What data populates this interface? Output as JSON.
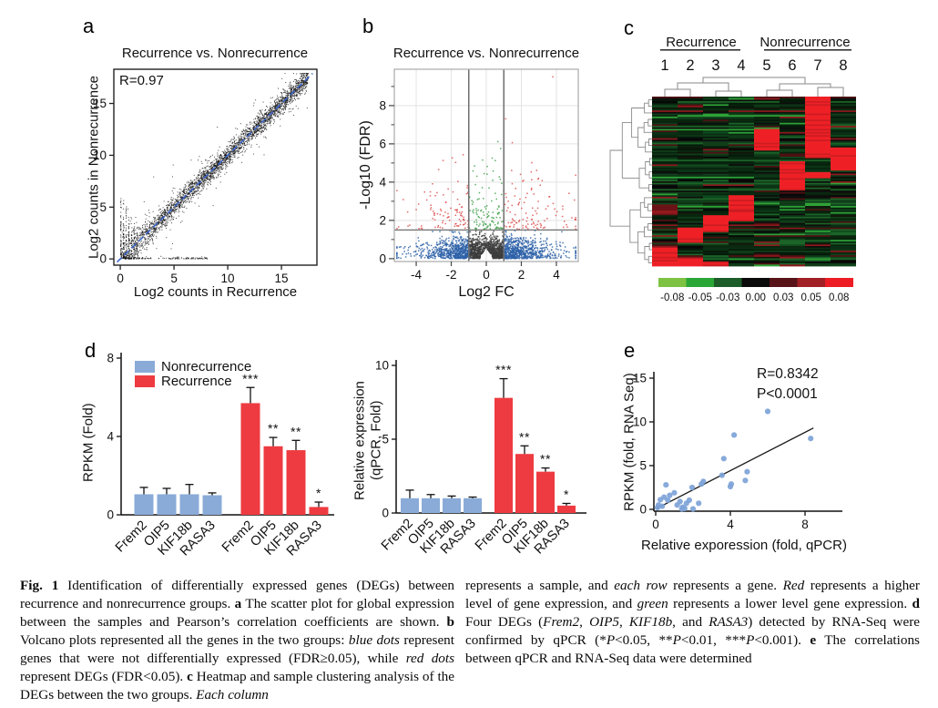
{
  "chart_data": {
    "a": {
      "type": "scatter",
      "label": "a",
      "title": "Recurrence vs. Nonrecurrence",
      "annotation": "R=0.97",
      "xlabel": "Log2 counts in Recurrence",
      "ylabel": "Log2 counts in Nonrecurrence",
      "xticks": [
        0,
        5,
        10,
        15
      ],
      "yticks": [
        0,
        5,
        10,
        15
      ],
      "xlim": [
        -0.6,
        18.3
      ],
      "ylim": [
        -0.6,
        18.3
      ],
      "point_color": "#141414",
      "identity_line": {
        "color": "#3b63c8",
        "style": "dashed"
      },
      "cloud": {
        "n": 3200,
        "seed": 11,
        "noise_sd": 0.5,
        "xmax": 17.5
      }
    },
    "b": {
      "type": "scatter",
      "label": "b",
      "title": "Recurrence vs. Nonrecurrence",
      "xlabel": "Log2 FC",
      "ylabel": "-Log10 (FDR)",
      "xticks": [
        -4,
        -2,
        0,
        2,
        4
      ],
      "yticks": [
        0,
        2,
        4,
        6,
        8
      ],
      "minor_yticks": [
        1,
        3,
        5,
        7,
        9
      ],
      "xlim": [
        -5.25,
        5.25
      ],
      "ylim": [
        -0.15,
        9.9
      ],
      "thresholds": {
        "x": [
          -1,
          1
        ],
        "y": 1.5
      },
      "n_bulk": 2500,
      "n_tail": 330,
      "seed": 23,
      "colors": {
        "blue": "#2e62a8",
        "gray": "#3d3d3d",
        "red": "#dd4e4e",
        "green": "#3fa04a"
      }
    },
    "c": {
      "type": "heatmap",
      "label": "c",
      "groups": [
        {
          "label": "Recurrence",
          "columns": [
            "1",
            "2",
            "3",
            "4"
          ]
        },
        {
          "label": "Nonrecurrence",
          "columns": [
            "5",
            "6",
            "7",
            "8"
          ]
        }
      ],
      "rows": 110,
      "seed": 5,
      "red_blocks": [
        {
          "col": 7,
          "from": 0.0,
          "to": 0.36
        },
        {
          "col": 5,
          "from": 0.185,
          "to": 0.31
        },
        {
          "col": 8,
          "from": 0.295,
          "to": 0.435
        },
        {
          "col": 6,
          "from": 0.375,
          "to": 0.55
        },
        {
          "col": 4,
          "from": 0.575,
          "to": 0.73
        },
        {
          "col": 3,
          "from": 0.7,
          "to": 0.8
        },
        {
          "col": 2,
          "from": 0.765,
          "to": 0.862
        },
        {
          "col": 1,
          "from": 0.885,
          "to": 1.0
        },
        {
          "col": 1,
          "from": 0.632,
          "to": 0.7,
          "shade": "dark"
        },
        {
          "col": 2,
          "from": 0.952,
          "to": 1.0
        },
        {
          "col": 3,
          "from": 0.972,
          "to": 1.0
        },
        {
          "col": 7,
          "from": 0.44,
          "to": 0.475
        }
      ],
      "palette": {
        "dark_greens": [
          "#07230d",
          "#0a2f13",
          "#0d3817",
          "#113f1a",
          "#0a2910",
          "#05190a",
          "#0f4a1e"
        ],
        "blacks": [
          "#060606",
          "#0d0d0d",
          "#111408"
        ],
        "mid_green": "#1c6428",
        "bright_green": "#2fa238",
        "dark_red": "#4f1013",
        "mid_red": "#8c181c",
        "block_red": "#ee2026",
        "block_red_alt": "#cb1d21"
      },
      "colorbar": {
        "segments": [
          "#7dc242",
          "#2aa637",
          "#1c5c28",
          "#0a0a0a",
          "#571318",
          "#a02025",
          "#ed1c24"
        ],
        "labels": [
          "-0.08",
          "-0.05",
          "-0.03",
          "0.00",
          "0.03",
          "0.05",
          "0.08"
        ]
      }
    },
    "d_left": {
      "type": "bar",
      "label": "d",
      "ylabel": "RPKM (Fold)",
      "yticks": [
        0,
        4,
        8
      ],
      "ylim": [
        0,
        8
      ],
      "categories": [
        "Frem2",
        "OIP5",
        "KIF18b",
        "RASA3"
      ],
      "legend": [
        {
          "label": "Nonrecurrence",
          "color": "#8aabd8"
        },
        {
          "label": "Recurrence",
          "color": "#ee3b41"
        }
      ],
      "series": [
        {
          "name": "Nonrecurrence",
          "color": "#8aabd8",
          "values": [
            1.05,
            1.05,
            1.05,
            1.0
          ],
          "errors": [
            0.35,
            0.3,
            0.5,
            0.12
          ]
        },
        {
          "name": "Recurrence",
          "color": "#ee3b41",
          "values": [
            5.7,
            3.5,
            3.3,
            0.4
          ],
          "errors": [
            0.8,
            0.45,
            0.5,
            0.25
          ],
          "significance": [
            "***",
            "**",
            "**",
            "*"
          ]
        }
      ]
    },
    "d_right": {
      "type": "bar",
      "ylabel_lines": [
        "Relative expression",
        "(qPCR, Fold)"
      ],
      "yticks": [
        0,
        5,
        10
      ],
      "ylim": [
        0,
        10
      ],
      "categories": [
        "Frem2",
        "OIP5",
        "KIF18b",
        "RASA3"
      ],
      "series": [
        {
          "name": "Nonrecurrence",
          "color": "#8aabd8",
          "values": [
            1.0,
            1.0,
            1.0,
            1.0
          ],
          "errors": [
            0.55,
            0.25,
            0.15,
            0.08
          ]
        },
        {
          "name": "Recurrence",
          "color": "#ee3b41",
          "values": [
            7.8,
            4.0,
            2.8,
            0.5
          ],
          "errors": [
            1.3,
            0.55,
            0.25,
            0.15
          ],
          "significance": [
            "***",
            "**",
            "**",
            "*"
          ]
        }
      ]
    },
    "e": {
      "type": "scatter",
      "label": "e",
      "annotations": [
        "R=0.8342",
        "P<0.0001"
      ],
      "xlabel": "Relative exporession (fold, qPCR)",
      "ylabel": "RPKM (fold, RNA Seq)",
      "xticks": [
        0,
        4,
        8
      ],
      "yticks": [
        0,
        5,
        10,
        15
      ],
      "xlim": [
        0,
        10
      ],
      "ylim": [
        0,
        16
      ],
      "point_color": "#7da3d8",
      "points": [
        [
          0.1,
          0.2
        ],
        [
          0.15,
          0.5
        ],
        [
          0.25,
          1.1
        ],
        [
          0.35,
          0.35
        ],
        [
          0.45,
          1.4
        ],
        [
          0.55,
          2.8
        ],
        [
          0.65,
          1.05
        ],
        [
          0.75,
          1.6
        ],
        [
          1.0,
          1.9
        ],
        [
          1.15,
          0.5
        ],
        [
          1.3,
          0.9
        ],
        [
          1.4,
          0.05
        ],
        [
          1.45,
          0.25
        ],
        [
          1.55,
          0.1
        ],
        [
          1.65,
          0.7
        ],
        [
          1.8,
          1.05
        ],
        [
          1.95,
          2.5
        ],
        [
          2.0,
          0.05
        ],
        [
          2.3,
          0.7
        ],
        [
          2.45,
          2.9
        ],
        [
          2.55,
          3.2
        ],
        [
          3.55,
          3.9
        ],
        [
          3.65,
          5.8
        ],
        [
          4.0,
          2.6
        ],
        [
          4.05,
          2.9
        ],
        [
          4.2,
          8.5
        ],
        [
          4.8,
          3.3
        ],
        [
          4.9,
          4.3
        ],
        [
          6.0,
          11.2
        ],
        [
          8.3,
          8.1
        ]
      ],
      "fit_line": [
        [
          0.05,
          0.1
        ],
        [
          8.45,
          9.3
        ]
      ]
    }
  },
  "caption": {
    "left": [
      {
        "t": "Fig. 1",
        "s": "b"
      },
      {
        "t": "  Identification of differentially expressed genes (DEGs) between recurrence and nonrecurrence groups. ",
        "s": "n"
      },
      {
        "t": "a",
        "s": "b"
      },
      {
        "t": " The scatter plot for global expression between the samples and Pearson’s correlation coefficients are shown. ",
        "s": "n"
      },
      {
        "t": "b",
        "s": "b"
      },
      {
        "t": " Volcano plots represented all the genes in the two groups: ",
        "s": "n"
      },
      {
        "t": "blue dots",
        "s": "i"
      },
      {
        "t": " represent genes that were not differentially expressed (FDR≥0.05), while ",
        "s": "n"
      },
      {
        "t": "red dots",
        "s": "i"
      },
      {
        "t": " represent DEGs (FDR<0.05). ",
        "s": "n"
      },
      {
        "t": "c",
        "s": "b"
      },
      {
        "t": " Heatmap and sample clustering analysis of the DEGs between the two groups. ",
        "s": "n"
      },
      {
        "t": "Each column",
        "s": "i"
      }
    ],
    "right": [
      {
        "t": "represents a sample, and ",
        "s": "n"
      },
      {
        "t": "each row",
        "s": "i"
      },
      {
        "t": " represents a gene. ",
        "s": "n"
      },
      {
        "t": "Red",
        "s": "i"
      },
      {
        "t": " represents a higher level of gene expression, and ",
        "s": "n"
      },
      {
        "t": "green",
        "s": "i"
      },
      {
        "t": " represents a lower level gene expression. ",
        "s": "n"
      },
      {
        "t": "d",
        "s": "b"
      },
      {
        "t": " Four DEGs (",
        "s": "n"
      },
      {
        "t": "Frem2",
        "s": "i"
      },
      {
        "t": ", ",
        "s": "n"
      },
      {
        "t": "OIP5",
        "s": "i"
      },
      {
        "t": ", ",
        "s": "n"
      },
      {
        "t": "KIF18b",
        "s": "i"
      },
      {
        "t": ", and ",
        "s": "n"
      },
      {
        "t": "RASA3",
        "s": "i"
      },
      {
        "t": ") detected by RNA-Seq were confirmed by qPCR (*",
        "s": "n"
      },
      {
        "t": "P",
        "s": "i"
      },
      {
        "t": "<0.05, **",
        "s": "n"
      },
      {
        "t": "P",
        "s": "i"
      },
      {
        "t": "<0.01, ***",
        "s": "n"
      },
      {
        "t": "P",
        "s": "i"
      },
      {
        "t": "<0.001). ",
        "s": "n"
      },
      {
        "t": "e",
        "s": "b"
      },
      {
        "t": " The correlations between qPCR and RNA-Seq data were determined",
        "s": "n"
      }
    ]
  }
}
